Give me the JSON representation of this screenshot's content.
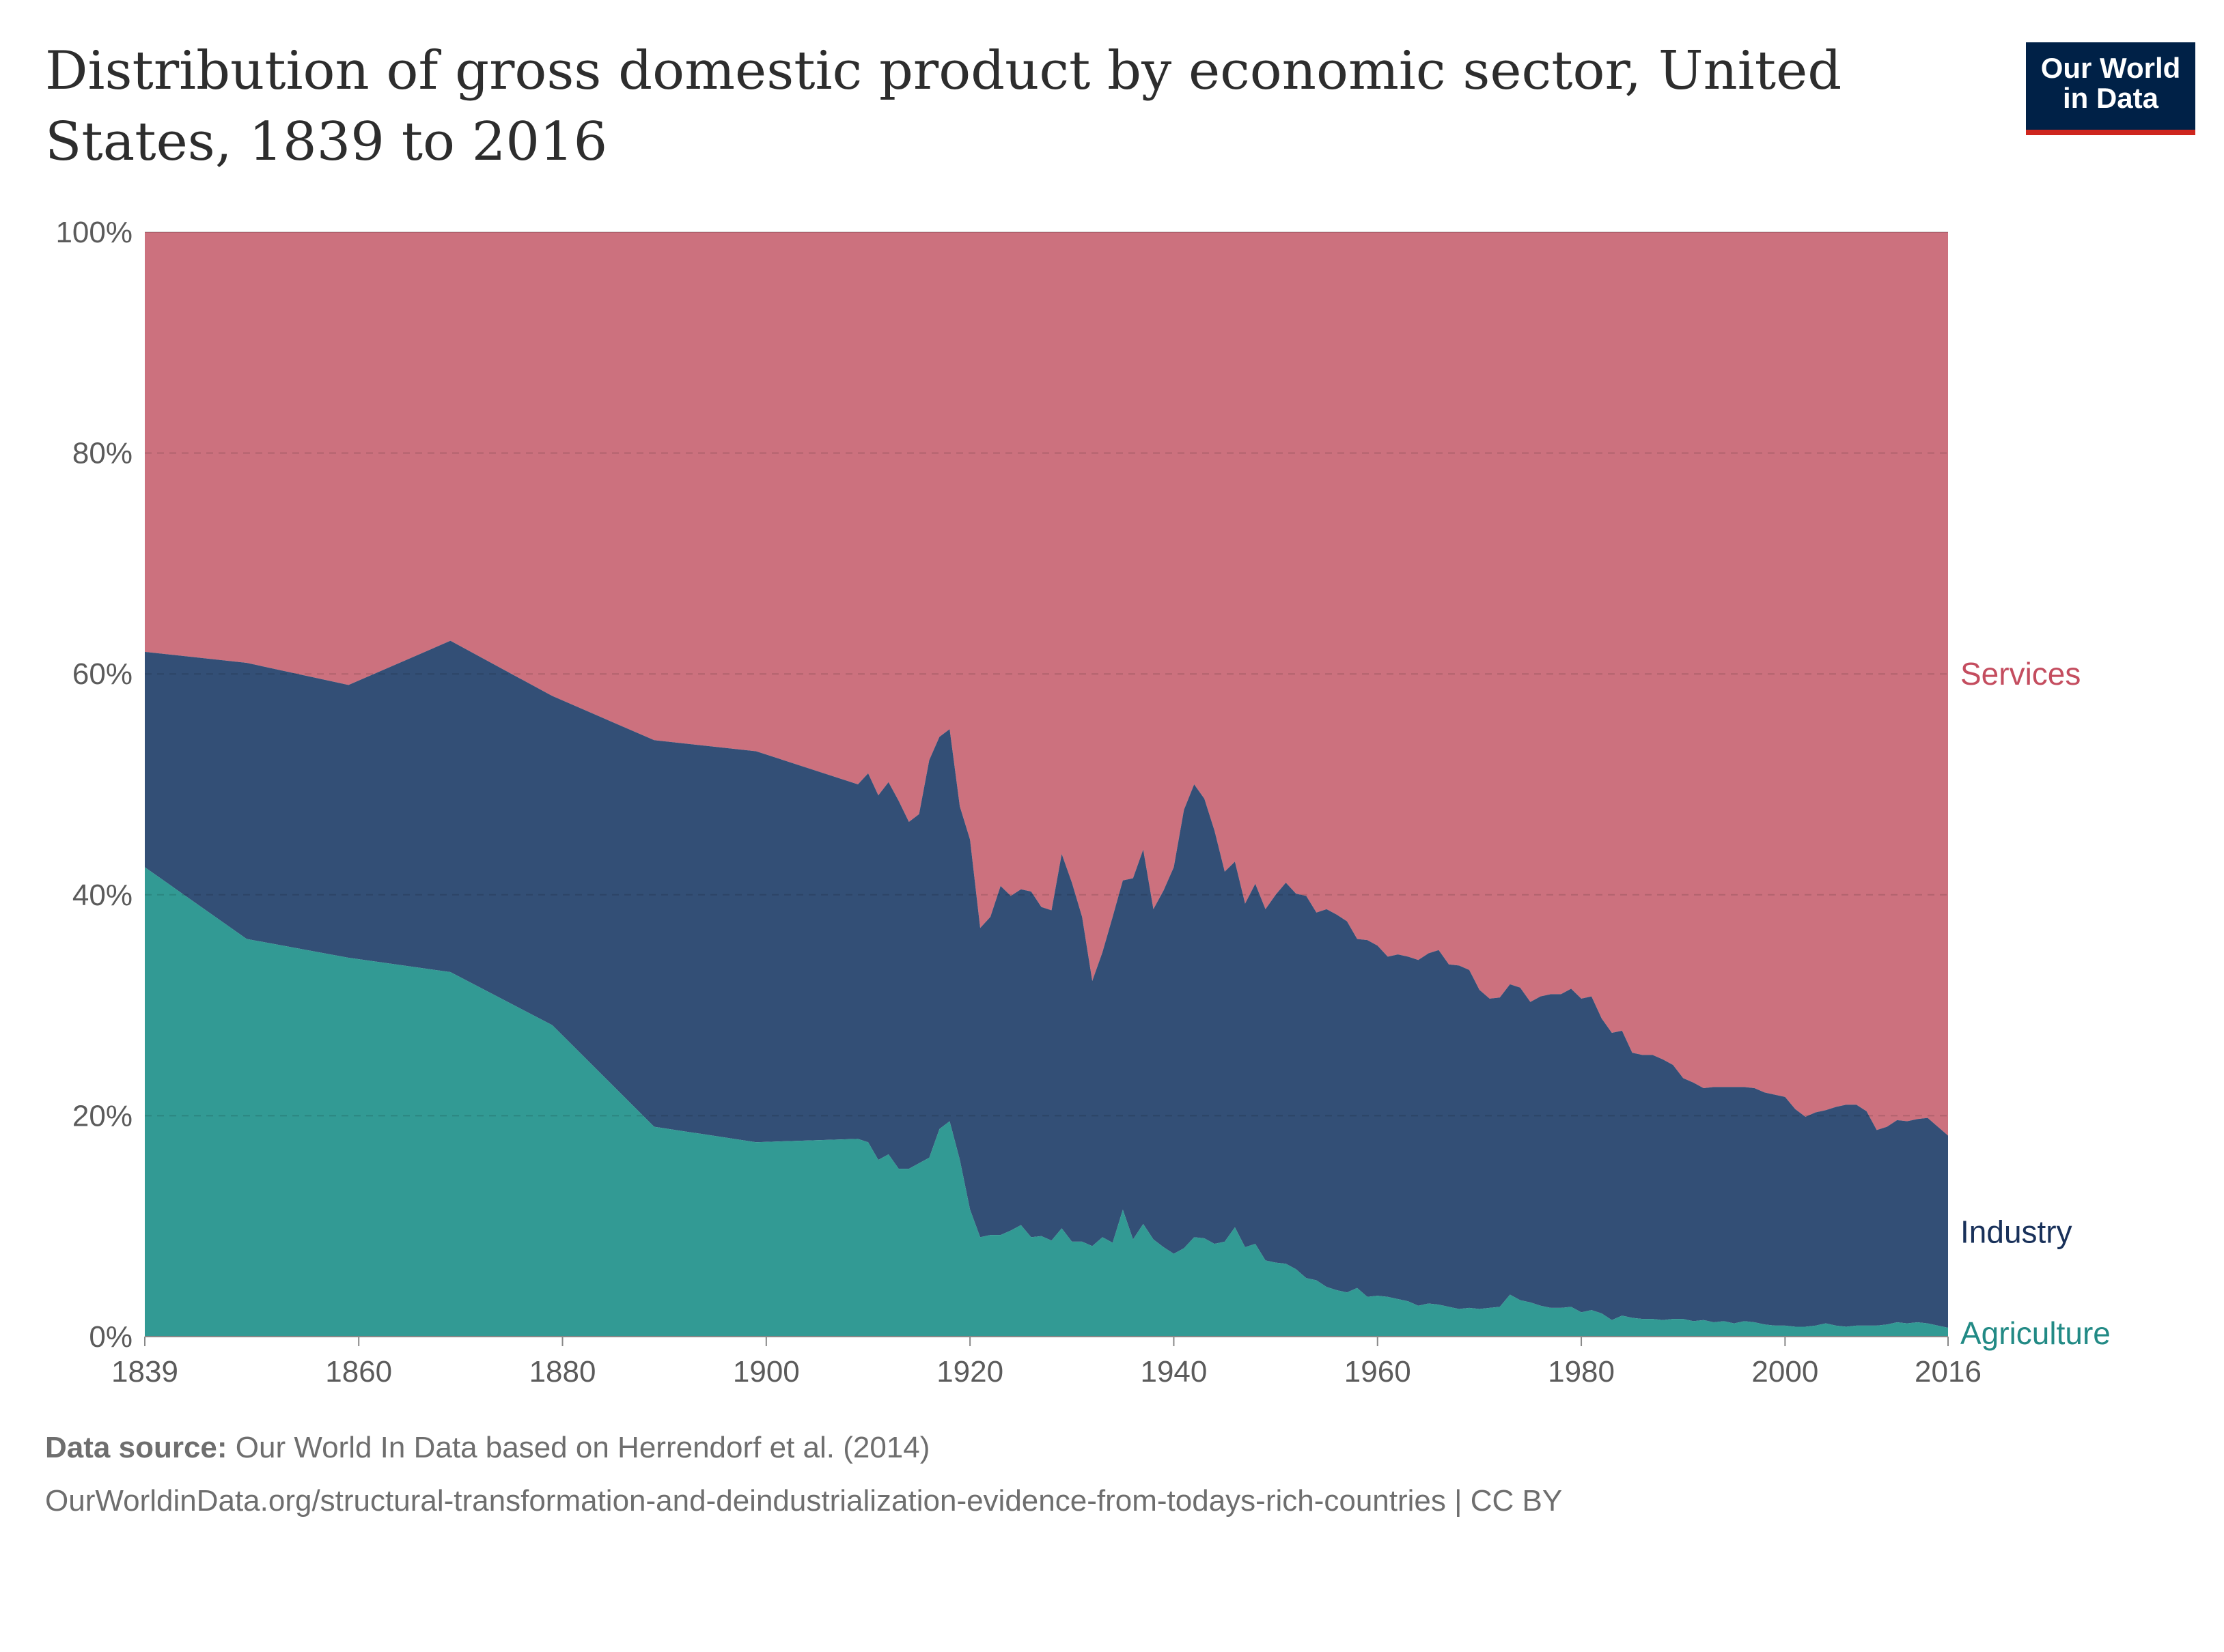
{
  "title": "Distribution of gross domestic product by economic sector, United States, 1839 to 2016",
  "logo": {
    "line1": "Our World",
    "line2": "in Data"
  },
  "footer": {
    "source_label": "Data source:",
    "source_text": "Our World In Data based on Herrendorf et al. (2014)",
    "url_line": "OurWorldinData.org/structural-transformation-and-deindustrialization-evidence-from-todays-rich-countries | CC BY"
  },
  "colors": {
    "agriculture": "#329a94",
    "industry": "#334f76",
    "services": "#cc717e",
    "industry_label": "#19315a",
    "agriculture_label": "#228a85",
    "services_label": "#c44d5f"
  },
  "chart_data": {
    "type": "area",
    "stacked": true,
    "xlim": [
      1839,
      2016
    ],
    "ylim": [
      0,
      100
    ],
    "x_ticks": [
      "1839",
      "1860",
      "1880",
      "1900",
      "1920",
      "1940",
      "1960",
      "1980",
      "2000",
      "2016"
    ],
    "y_ticks": [
      "0%",
      "20%",
      "40%",
      "60%",
      "80%",
      "100%"
    ],
    "grid": "horizontal dashed",
    "legend": "right, inline labels",
    "series": [
      {
        "name": "Agriculture",
        "points": [
          [
            1839,
            42.5
          ],
          [
            1849,
            36
          ],
          [
            1859,
            34.3
          ],
          [
            1869,
            33
          ],
          [
            1879,
            28.2
          ],
          [
            1889,
            19
          ],
          [
            1899,
            17.6
          ],
          [
            1909,
            17.9
          ],
          [
            1910,
            17.6
          ],
          [
            1911,
            16
          ],
          [
            1912,
            16.5
          ],
          [
            1913,
            15.2
          ],
          [
            1914,
            15.2
          ],
          [
            1915,
            15.7
          ],
          [
            1916,
            16.2
          ],
          [
            1917,
            18.8
          ],
          [
            1918,
            19.5
          ],
          [
            1919,
            16
          ],
          [
            1920,
            11.5
          ],
          [
            1921,
            9
          ],
          [
            1922,
            9.2
          ],
          [
            1923,
            9.2
          ],
          [
            1924,
            9.6
          ],
          [
            1925,
            10.1
          ],
          [
            1926,
            9
          ],
          [
            1927,
            9.1
          ],
          [
            1928,
            8.7
          ],
          [
            1929,
            9.8
          ],
          [
            1930,
            8.6
          ],
          [
            1931,
            8.6
          ],
          [
            1932,
            8.2
          ],
          [
            1933,
            9
          ],
          [
            1934,
            8.5
          ],
          [
            1935,
            11.5
          ],
          [
            1936,
            8.8
          ],
          [
            1937,
            10.2
          ],
          [
            1938,
            8.8
          ],
          [
            1939,
            8.1
          ],
          [
            1940,
            7.5
          ],
          [
            1941,
            8
          ],
          [
            1942,
            9
          ],
          [
            1943,
            8.9
          ],
          [
            1944,
            8.4
          ],
          [
            1945,
            8.6
          ],
          [
            1946,
            9.9
          ],
          [
            1947,
            8.1
          ],
          [
            1948,
            8.4
          ],
          [
            1949,
            6.9
          ],
          [
            1950,
            6.7
          ],
          [
            1951,
            6.6
          ],
          [
            1952,
            6.1
          ],
          [
            1953,
            5.3
          ],
          [
            1954,
            5.1
          ],
          [
            1955,
            4.5
          ],
          [
            1956,
            4.2
          ],
          [
            1957,
            4
          ],
          [
            1958,
            4.4
          ],
          [
            1959,
            3.6
          ],
          [
            1960,
            3.7
          ],
          [
            1961,
            3.6
          ],
          [
            1962,
            3.4
          ],
          [
            1963,
            3.2
          ],
          [
            1964,
            2.8
          ],
          [
            1965,
            3
          ],
          [
            1966,
            2.9
          ],
          [
            1967,
            2.7
          ],
          [
            1968,
            2.5
          ],
          [
            1969,
            2.6
          ],
          [
            1970,
            2.5
          ],
          [
            1971,
            2.6
          ],
          [
            1972,
            2.7
          ],
          [
            1973,
            3.8
          ],
          [
            1974,
            3.3
          ],
          [
            1975,
            3.1
          ],
          [
            1976,
            2.8
          ],
          [
            1977,
            2.6
          ],
          [
            1978,
            2.6
          ],
          [
            1979,
            2.7
          ],
          [
            1980,
            2.2
          ],
          [
            1981,
            2.4
          ],
          [
            1982,
            2.1
          ],
          [
            1983,
            1.5
          ],
          [
            1984,
            1.9
          ],
          [
            1985,
            1.7
          ],
          [
            1986,
            1.6
          ],
          [
            1987,
            1.6
          ],
          [
            1988,
            1.5
          ],
          [
            1989,
            1.6
          ],
          [
            1990,
            1.6
          ],
          [
            1991,
            1.4
          ],
          [
            1992,
            1.5
          ],
          [
            1993,
            1.3
          ],
          [
            1994,
            1.4
          ],
          [
            1995,
            1.2
          ],
          [
            1996,
            1.4
          ],
          [
            1997,
            1.3
          ],
          [
            1998,
            1.1
          ],
          [
            1999,
            1
          ],
          [
            2000,
            1
          ],
          [
            2001,
            0.9
          ],
          [
            2002,
            0.9
          ],
          [
            2003,
            1
          ],
          [
            2004,
            1.2
          ],
          [
            2005,
            1
          ],
          [
            2006,
            0.9
          ],
          [
            2007,
            1
          ],
          [
            2008,
            1
          ],
          [
            2009,
            1
          ],
          [
            2010,
            1.1
          ],
          [
            2011,
            1.3
          ],
          [
            2012,
            1.2
          ],
          [
            2013,
            1.3
          ],
          [
            2014,
            1.2
          ],
          [
            2015,
            1
          ],
          [
            2016,
            0.8
          ]
        ]
      },
      {
        "name": "Industry",
        "points": [
          [
            1839,
            19.5
          ],
          [
            1849,
            25
          ],
          [
            1859,
            24.7
          ],
          [
            1869,
            30
          ],
          [
            1879,
            29.8
          ],
          [
            1889,
            35
          ],
          [
            1899,
            35.4
          ],
          [
            1909,
            32.1
          ],
          [
            1910,
            33.4
          ],
          [
            1911,
            33
          ],
          [
            1912,
            33.7
          ],
          [
            1913,
            33.3
          ],
          [
            1914,
            31.4
          ],
          [
            1915,
            31.6
          ],
          [
            1916,
            36
          ],
          [
            1917,
            35.5
          ],
          [
            1918,
            35.5
          ],
          [
            1919,
            32
          ],
          [
            1920,
            33.5
          ],
          [
            1921,
            28
          ],
          [
            1922,
            28.8
          ],
          [
            1923,
            31.6
          ],
          [
            1924,
            30.3
          ],
          [
            1925,
            30.4
          ],
          [
            1926,
            31.3
          ],
          [
            1927,
            29.8
          ],
          [
            1928,
            29.9
          ],
          [
            1929,
            33.9
          ],
          [
            1930,
            32.5
          ],
          [
            1931,
            29.4
          ],
          [
            1932,
            24
          ],
          [
            1933,
            25.8
          ],
          [
            1934,
            29.5
          ],
          [
            1935,
            29.8
          ],
          [
            1936,
            32.7
          ],
          [
            1937,
            33.9
          ],
          [
            1938,
            29.9
          ],
          [
            1939,
            32.3
          ],
          [
            1940,
            35
          ],
          [
            1941,
            39.7
          ],
          [
            1942,
            41
          ],
          [
            1943,
            39.8
          ],
          [
            1944,
            37.4
          ],
          [
            1945,
            33.5
          ],
          [
            1946,
            33.1
          ],
          [
            1947,
            31.1
          ],
          [
            1948,
            32.6
          ],
          [
            1949,
            31.8
          ],
          [
            1950,
            33.3
          ],
          [
            1951,
            34.5
          ],
          [
            1952,
            34
          ],
          [
            1953,
            34.6
          ],
          [
            1954,
            33.3
          ],
          [
            1955,
            34.2
          ],
          [
            1956,
            34
          ],
          [
            1957,
            33.6
          ],
          [
            1958,
            31.6
          ],
          [
            1959,
            32.3
          ],
          [
            1960,
            31.7
          ],
          [
            1961,
            30.8
          ],
          [
            1962,
            31.2
          ],
          [
            1963,
            31.2
          ],
          [
            1964,
            31.3
          ],
          [
            1965,
            31.7
          ],
          [
            1966,
            32.1
          ],
          [
            1967,
            31
          ],
          [
            1968,
            31.1
          ],
          [
            1969,
            30.6
          ],
          [
            1970,
            28.9
          ],
          [
            1971,
            28
          ],
          [
            1972,
            28
          ],
          [
            1973,
            28.1
          ],
          [
            1974,
            28.3
          ],
          [
            1975,
            27.2
          ],
          [
            1976,
            28
          ],
          [
            1977,
            28.4
          ],
          [
            1978,
            28.4
          ],
          [
            1979,
            28.8
          ],
          [
            1980,
            28.4
          ],
          [
            1981,
            28.4
          ],
          [
            1982,
            26.7
          ],
          [
            1983,
            26
          ],
          [
            1984,
            25.8
          ],
          [
            1985,
            24
          ],
          [
            1986,
            23.9
          ],
          [
            1987,
            23.9
          ],
          [
            1988,
            23.6
          ],
          [
            1989,
            23
          ],
          [
            1990,
            21.8
          ],
          [
            1991,
            21.6
          ],
          [
            1992,
            21
          ],
          [
            1993,
            21.3
          ],
          [
            1994,
            21.2
          ],
          [
            1995,
            21.4
          ],
          [
            1996,
            21.2
          ],
          [
            1997,
            21.2
          ],
          [
            1998,
            21
          ],
          [
            1999,
            20.9
          ],
          [
            2000,
            20.7
          ],
          [
            2001,
            19.7
          ],
          [
            2002,
            19
          ],
          [
            2003,
            19.3
          ],
          [
            2004,
            19.3
          ],
          [
            2005,
            19.8
          ],
          [
            2006,
            20.1
          ],
          [
            2007,
            20
          ],
          [
            2008,
            19.4
          ],
          [
            2009,
            17.7
          ],
          [
            2010,
            17.9
          ],
          [
            2011,
            18.3
          ],
          [
            2012,
            18.3
          ],
          [
            2013,
            18.4
          ],
          [
            2014,
            18.6
          ],
          [
            2015,
            18
          ],
          [
            2016,
            17.4
          ]
        ]
      },
      {
        "name": "Services",
        "note_total": 100
      }
    ]
  }
}
